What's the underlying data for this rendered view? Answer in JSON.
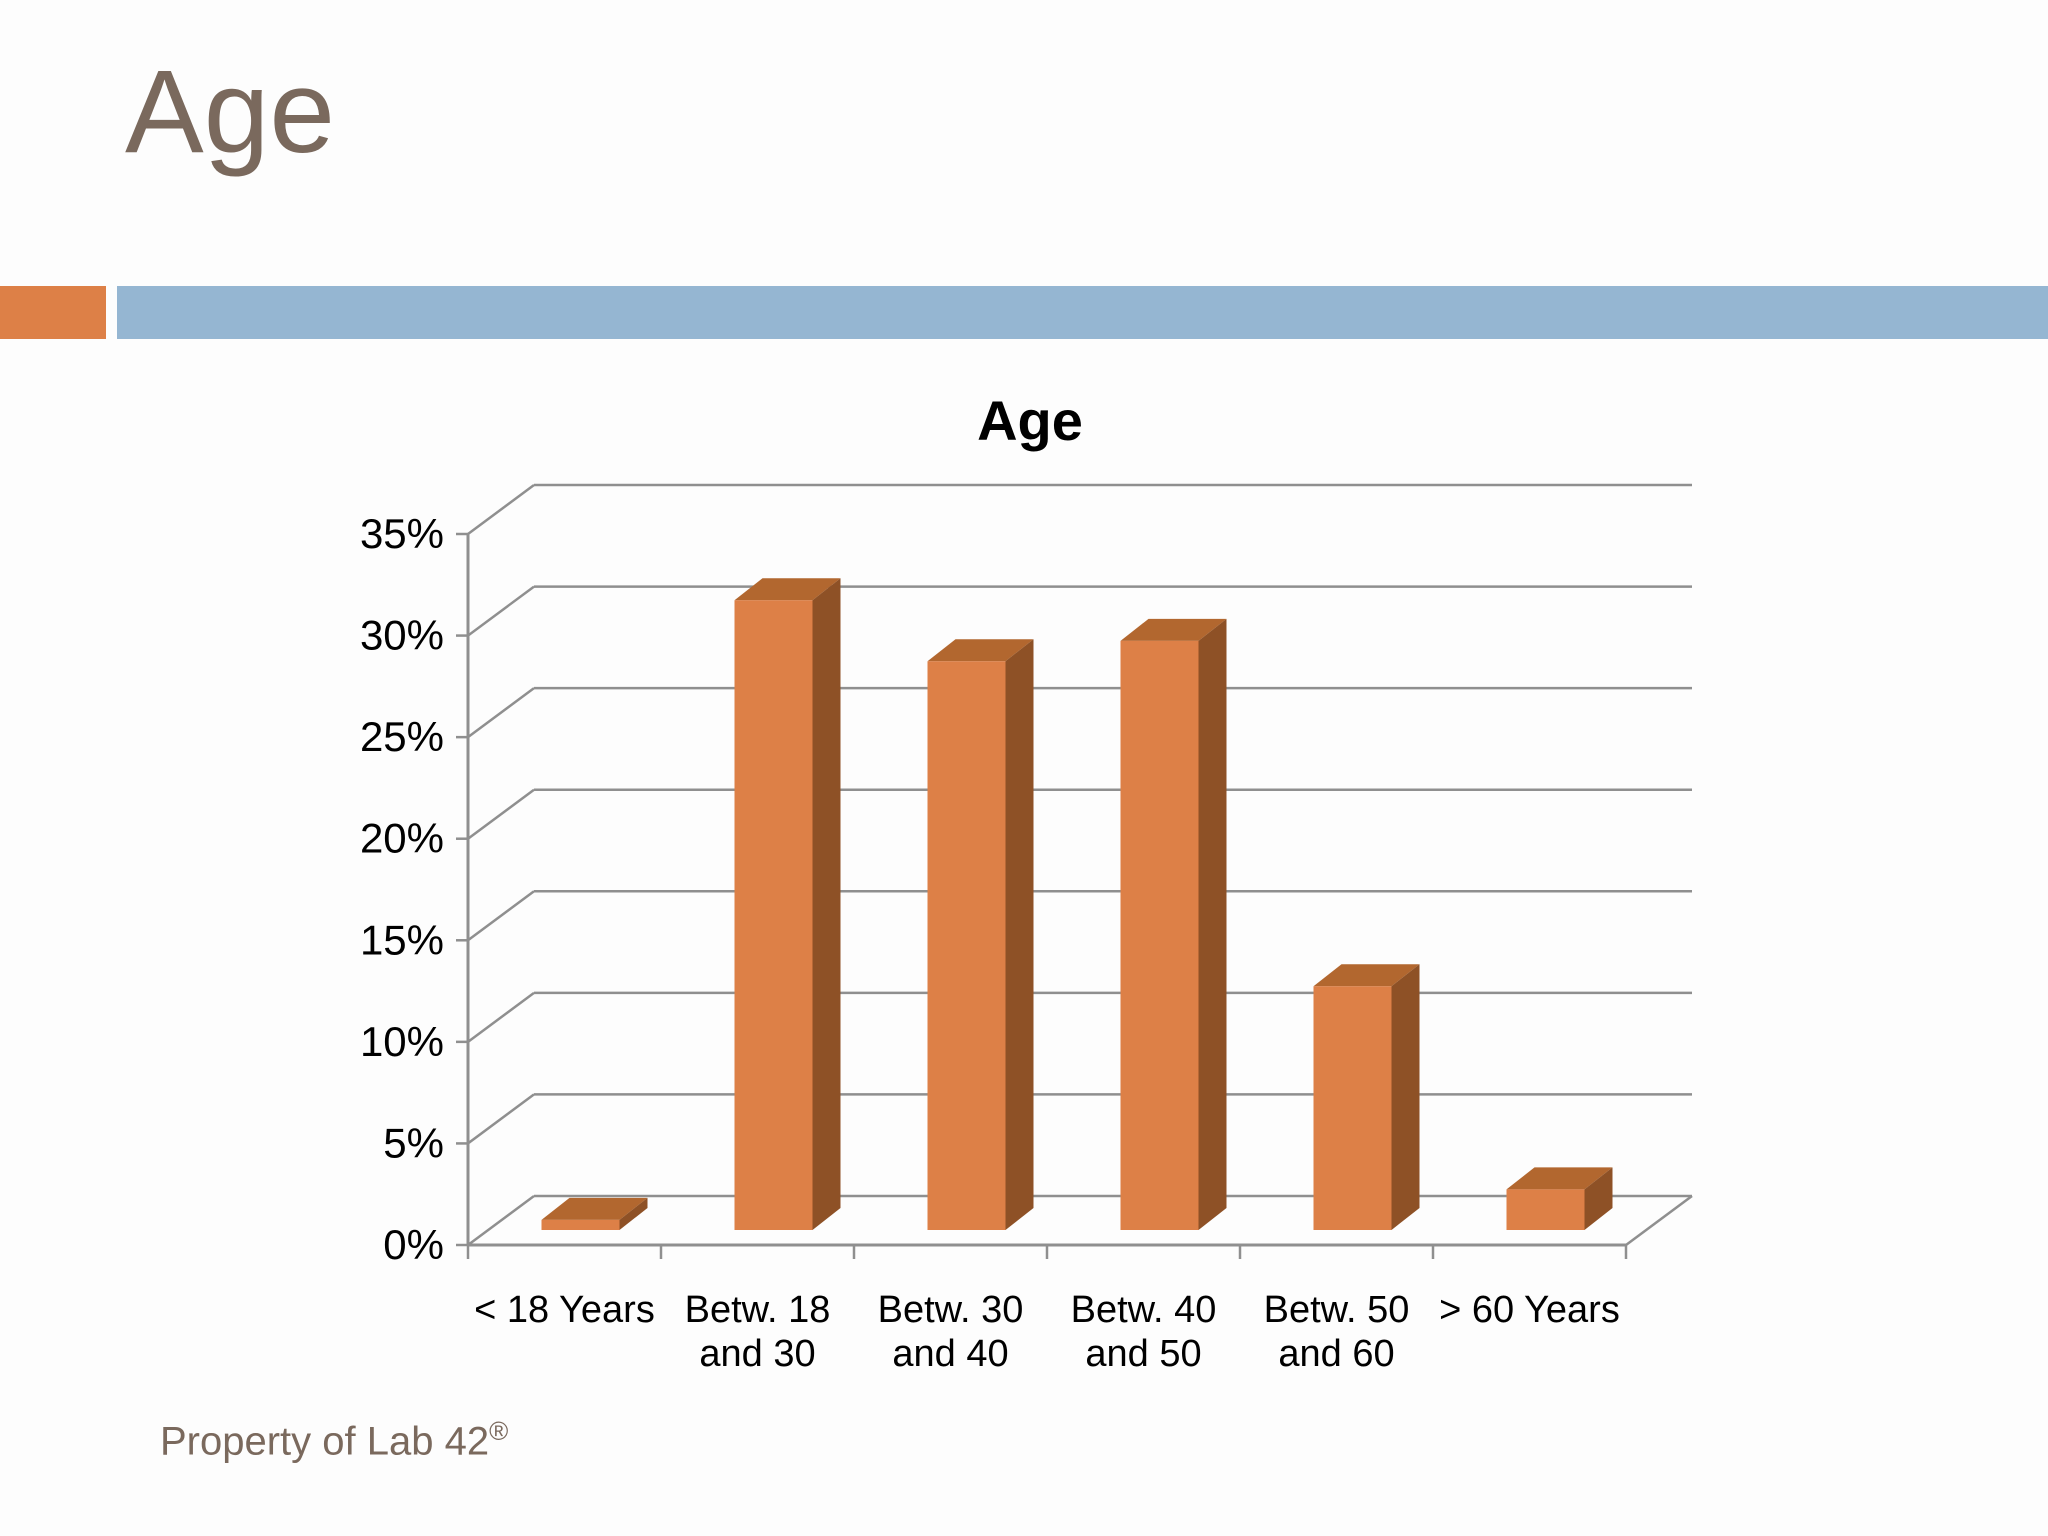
{
  "slide": {
    "title": "Age",
    "footer": {
      "text": "Property of Lab 42",
      "registered_mark": "®"
    },
    "accent_colors": {
      "orange_square": "#DD8047",
      "blue_band": "#95B6D2",
      "title_text": "#7A695D"
    }
  },
  "chart_data": {
    "type": "bar",
    "projection": "3d-oblique-column",
    "title": "Age",
    "categories": [
      "< 18 Years",
      "Betw. 18 and 30",
      "Betw. 30 and 40",
      "Betw. 40 and 50",
      "Betw. 50 and 60",
      "> 60 Years"
    ],
    "category_label_lines": [
      [
        "< 18 Years"
      ],
      [
        "Betw. 18",
        "and 30"
      ],
      [
        "Betw. 30",
        "and 40"
      ],
      [
        "Betw. 40",
        "and 50"
      ],
      [
        "Betw. 50",
        "and 60"
      ],
      [
        "> 60 Years"
      ]
    ],
    "values": [
      0.5,
      31,
      28,
      29,
      12,
      2
    ],
    "unit": "%",
    "xlabel": "",
    "ylabel": "",
    "ylim": [
      0,
      35
    ],
    "y_tick_step": 5,
    "y_tick_labels": [
      "0%",
      "5%",
      "10%",
      "15%",
      "20%",
      "25%",
      "30%",
      "35%"
    ],
    "grid": true,
    "legend": "none",
    "colors": {
      "bar_front": "#DD8047",
      "bar_top": "#B2672F",
      "bar_side": "#8E5126",
      "gridline": "#8F8F8F",
      "axis": "#8F8F8F",
      "tick_text": "#000000",
      "title_text": "#000000"
    }
  }
}
